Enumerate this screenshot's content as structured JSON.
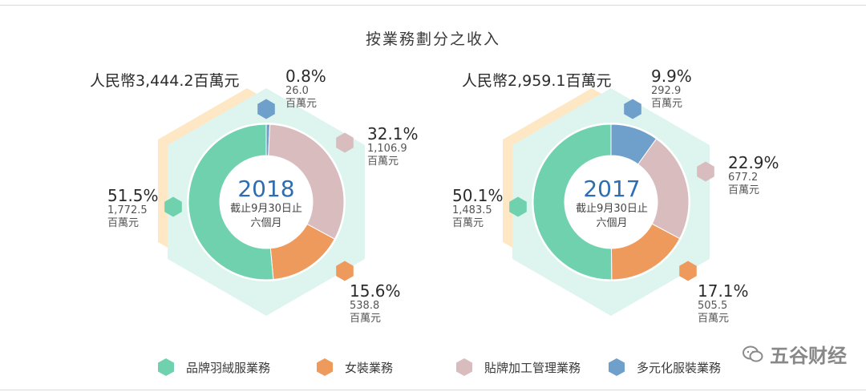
{
  "title": "按業務劃分之收入",
  "watermark": "五谷财经",
  "unit": "百萬元",
  "colors": {
    "brand": "#6fd1ae",
    "women": "#ef9a5d",
    "oem": "#d9bcbe",
    "diversified": "#6f9fcb",
    "hex_bg": "#def5ef",
    "hex_shadow": "#fde7c5",
    "center_year": "#2f6db2"
  },
  "legend": [
    {
      "label": "品牌羽絨服業務",
      "color": "#6fd1ae"
    },
    {
      "label": "女裝業務",
      "color": "#ef9a5d"
    },
    {
      "label": "貼牌加工管理業務",
      "color": "#d9bcbe"
    },
    {
      "label": "多元化服裝業務",
      "color": "#6f9fcb"
    }
  ],
  "chart_data": [
    {
      "type": "pie",
      "year": "2018",
      "center_text": "截止9月30日止",
      "center_text2": "六個月",
      "total_label": "人民幣3,444.2百萬元",
      "slices": [
        {
          "name": "多元化服裝業務",
          "pct": "0.8%",
          "amount": "26.0",
          "value": 26.0
        },
        {
          "name": "貼牌加工管理業務",
          "pct": "32.1%",
          "amount": "1,106.9",
          "value": 1106.9
        },
        {
          "name": "女裝業務",
          "pct": "15.6%",
          "amount": "538.8",
          "value": 538.8
        },
        {
          "name": "品牌羽絨服業務",
          "pct": "51.5%",
          "amount": "1,772.5",
          "value": 1772.5
        }
      ]
    },
    {
      "type": "pie",
      "year": "2017",
      "center_text": "截止9月30日止",
      "center_text2": "六個月",
      "total_label": "人民幣2,959.1百萬元",
      "slices": [
        {
          "name": "多元化服裝業務",
          "pct": "9.9%",
          "amount": "292.9",
          "value": 292.9
        },
        {
          "name": "貼牌加工管理業務",
          "pct": "22.9%",
          "amount": "677.2",
          "value": 677.2
        },
        {
          "name": "女裝業務",
          "pct": "17.1%",
          "amount": "505.5",
          "value": 505.5
        },
        {
          "name": "品牌羽絨服業務",
          "pct": "50.1%",
          "amount": "1,483.5",
          "value": 1483.5
        }
      ]
    }
  ]
}
